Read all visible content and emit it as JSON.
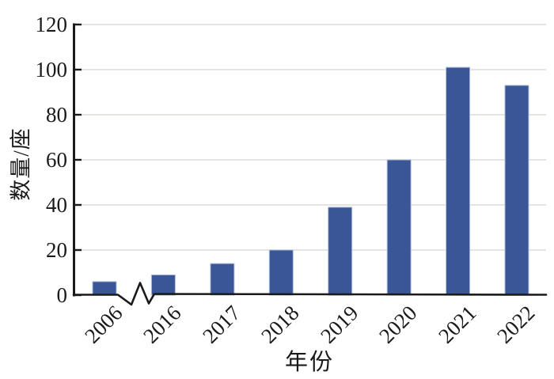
{
  "chart_data": {
    "type": "bar",
    "title": "",
    "categories": [
      "2006",
      "2016",
      "2017",
      "2018",
      "2019",
      "2020",
      "2021",
      "2022"
    ],
    "values": [
      6,
      9,
      14,
      20,
      39,
      60,
      101,
      93
    ],
    "xlabel": "年份",
    "ylabel": "数量/座",
    "ylim": [
      0,
      120
    ],
    "yticks": [
      0,
      20,
      40,
      60,
      80,
      100,
      120
    ],
    "grid": true,
    "legend_position": "none",
    "x_tick_rotation_deg": -45,
    "axis_break": {
      "location": "x-axis between 2006 and 2016",
      "style": "zigzag"
    },
    "colors": {
      "bar": "#3B5696",
      "bar_edge": "#AEBFDC",
      "gridline": "#DEDBD5",
      "axis": "#1A1A1A",
      "background": "#FFFFFF",
      "text": "#1A1A1A"
    }
  }
}
